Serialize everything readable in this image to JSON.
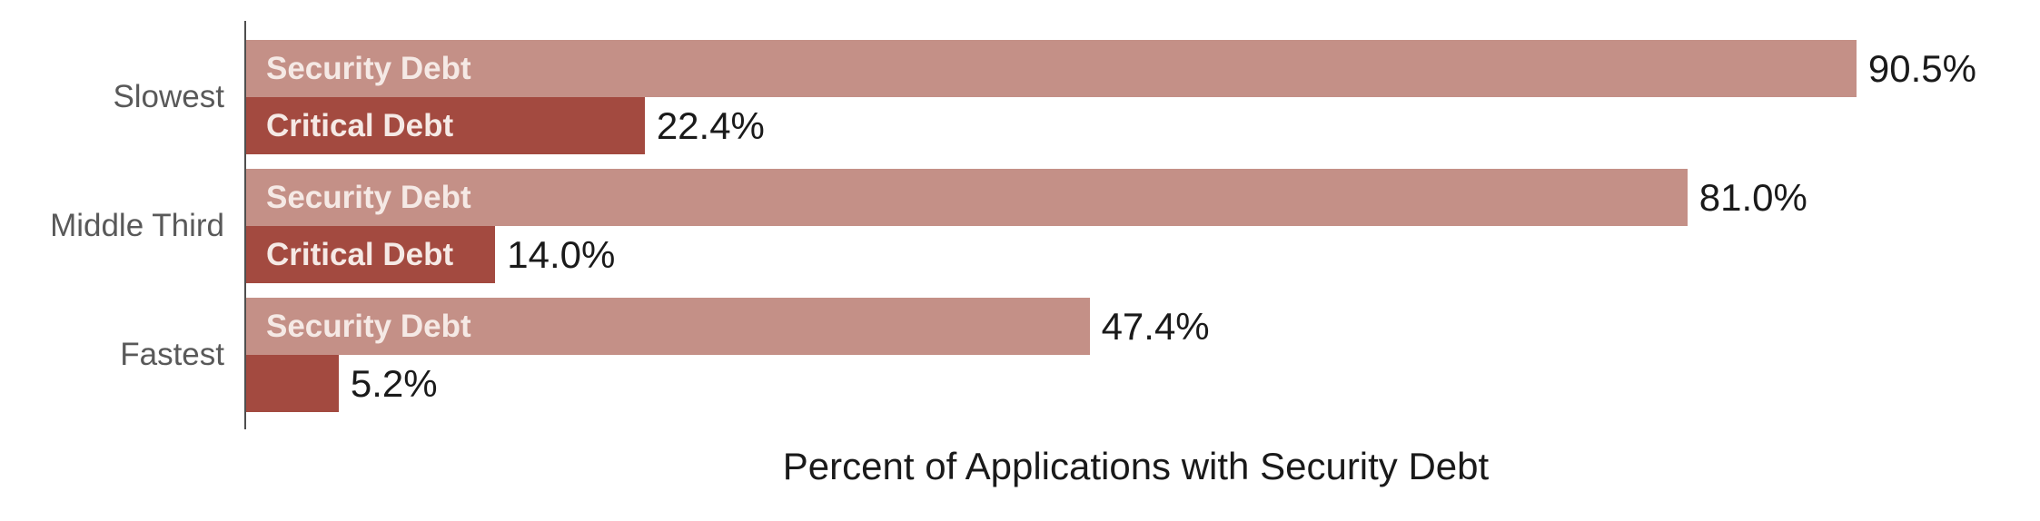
{
  "chart_data": {
    "type": "bar",
    "orientation": "horizontal",
    "title": "Percent of Applications with Security Debt",
    "categories": [
      "Slowest",
      "Middle Third",
      "Fastest"
    ],
    "series": [
      {
        "name": "Security Debt",
        "color": "#c49087",
        "values": [
          90.5,
          81.0,
          47.4
        ],
        "value_labels": [
          "90.5%",
          "81.0%",
          "47.4%"
        ],
        "inner_labels": [
          "Security Debt",
          "Security Debt",
          "Security Debt"
        ]
      },
      {
        "name": "Critical Debt",
        "color": "#a34a40",
        "values": [
          22.4,
          14.0,
          5.2
        ],
        "value_labels": [
          "22.4%",
          "14.0%",
          "5.2%"
        ],
        "inner_labels": [
          "Critical Debt",
          "Critical Debt",
          ""
        ]
      }
    ],
    "xlim": [
      0,
      100
    ],
    "grid": false,
    "legend_position": "none",
    "colors": {
      "value_text": "#1a1a1a",
      "category_text": "#595959",
      "inner_label_text": "#f5e9e5",
      "axis_line": "#4f4f4f",
      "title_text": "#1a1a1a",
      "background": "#ffffff"
    }
  }
}
